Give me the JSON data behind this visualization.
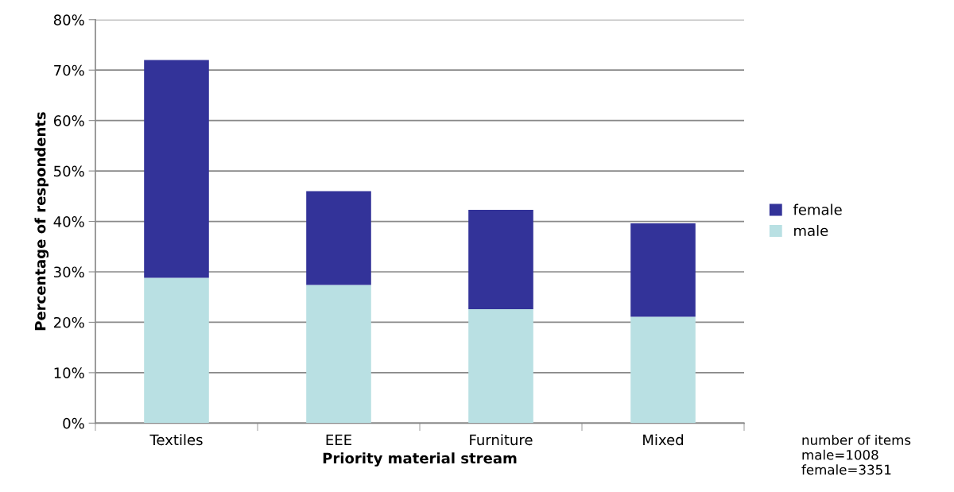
{
  "chart_data": {
    "type": "bar",
    "stacked": true,
    "xlabel": "Priority material stream",
    "ylabel": "Percentage of respondents",
    "categories": [
      "Textiles",
      "EEE",
      "Furniture",
      "Mixed"
    ],
    "series": [
      {
        "name": "male",
        "color": "#b9e0e3",
        "values": [
          28.8,
          27.4,
          22.6,
          21.1
        ]
      },
      {
        "name": "female",
        "color": "#333399",
        "values": [
          43.2,
          18.6,
          19.7,
          18.5
        ]
      }
    ],
    "ylim": [
      0,
      80
    ],
    "yticks": [
      {
        "value": 0,
        "label": "0%"
      },
      {
        "value": 10,
        "label": "10%"
      },
      {
        "value": 20,
        "label": "20%"
      },
      {
        "value": 30,
        "label": "30%"
      },
      {
        "value": 40,
        "label": "40%"
      },
      {
        "value": 50,
        "label": "50%"
      },
      {
        "value": 60,
        "label": "60%"
      },
      {
        "value": 70,
        "label": "70%"
      },
      {
        "value": 80,
        "label": "80%"
      }
    ],
    "grid": "y",
    "legend": "right",
    "annotations": [
      "number of items\nmale=1008\nfemale=3351"
    ]
  }
}
